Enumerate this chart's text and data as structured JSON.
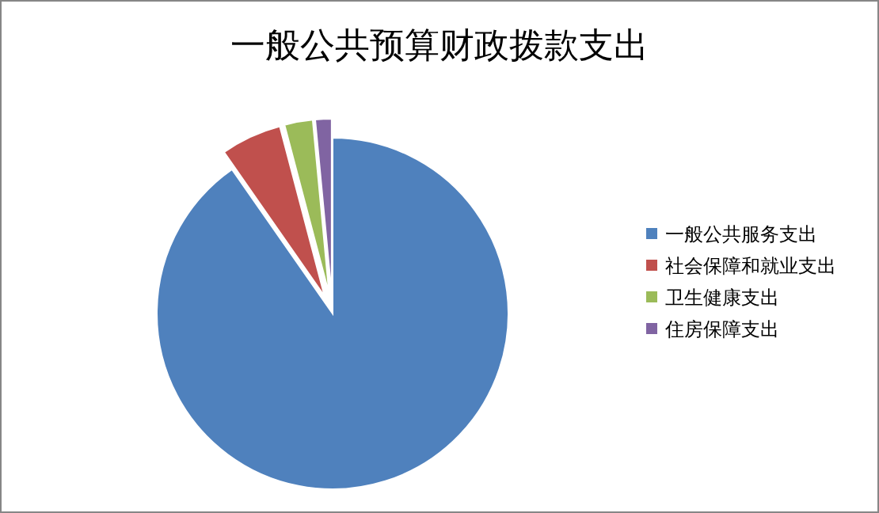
{
  "chart_data": {
    "type": "pie",
    "title": "一般公共预算财政拨款支出",
    "categories": [
      "一般公共服务支出",
      "社会保障和就业支出",
      "卫生健康支出",
      "住房保障支出"
    ],
    "values": [
      90.3,
      5.6,
      2.6,
      1.5
    ],
    "colors": [
      "#4f81bd",
      "#c0504d",
      "#9bbb59",
      "#8064a2"
    ],
    "legend": "right"
  }
}
